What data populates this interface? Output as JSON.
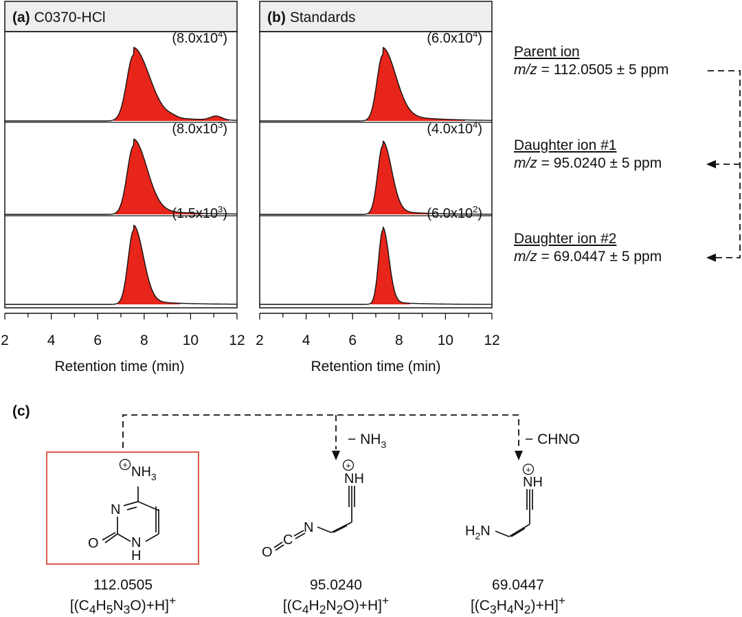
{
  "panel_a": {
    "tag": "(a)",
    "title": "C0370-HCl"
  },
  "panel_b": {
    "tag": "(b)",
    "title": "Standards"
  },
  "panel_c": {
    "tag": "(c)"
  },
  "ions": [
    {
      "name": "Parent ion",
      "mz_label": "m/z",
      "mz_value": " = 112.0505 ± 5 ppm"
    },
    {
      "name": "Daughter ion #1",
      "mz_label": "m/z",
      "mz_value": " = 95.0240 ± 5 ppm"
    },
    {
      "name": "Daughter ion #2",
      "mz_label": "m/z",
      "mz_value": " = 69.0447 ± 5 ppm"
    }
  ],
  "losses": [
    {
      "text": "− NH",
      "sub": "3"
    },
    {
      "text": "− CHNO",
      "sub": ""
    }
  ],
  "structures": [
    {
      "mass": "112.0505",
      "formula_parts": [
        "[(C",
        "4",
        "H",
        "5",
        "N",
        "3",
        "O)+H]",
        "+"
      ]
    },
    {
      "mass": "95.0240",
      "formula_parts": [
        "[(C",
        "4",
        "H",
        "2",
        "N",
        "2",
        "O)+H]",
        "+"
      ]
    },
    {
      "mass": "69.0447",
      "formula_parts": [
        "[(C",
        "3",
        "H",
        "4",
        "N",
        "2",
        ")+H]",
        "+"
      ]
    }
  ],
  "atom_labels": {
    "nh3": "NH",
    "nh3_sub": "3",
    "N": "N",
    "O": "O",
    "H": "H",
    "NH": "NH",
    "C": "C",
    "H2N": "H",
    "H2N_sub": "2",
    "H2N_tail": "N",
    "plus": "+"
  },
  "colors": {
    "peak": "#e8251a",
    "box": "#e05a4c",
    "line": "#111111"
  },
  "chart_data": [
    {
      "type": "line",
      "panel": "(a) C0370-HCl",
      "title": "C0370-HCl",
      "xlabel": "Retention time (min)",
      "xlim": [
        2,
        12
      ],
      "xticks": [
        2,
        4,
        6,
        8,
        10,
        12
      ],
      "series": [
        {
          "name": "Parent ion",
          "intensity_label": "(8.0x10",
          "intensity_exp": "4",
          "peak_rt": 7.55,
          "peak_width": 0.3,
          "tail": 0.95
        },
        {
          "name": "Daughter ion #1",
          "intensity_label": "(8.0x10",
          "intensity_exp": "3",
          "peak_rt": 7.55,
          "peak_width": 0.28,
          "tail": 0.8
        },
        {
          "name": "Daughter ion #2",
          "intensity_label": "(1.5x10",
          "intensity_exp": "3",
          "peak_rt": 7.55,
          "peak_width": 0.24,
          "tail": 0.55
        }
      ]
    },
    {
      "type": "line",
      "panel": "(b) Standards",
      "title": "Standards",
      "xlabel": "Retention time (min)",
      "xlim": [
        2,
        12
      ],
      "xticks": [
        2,
        4,
        6,
        8,
        10,
        12
      ],
      "series": [
        {
          "name": "Parent ion",
          "intensity_label": "(6.0x10",
          "intensity_exp": "4",
          "peak_rt": 7.3,
          "peak_width": 0.25,
          "tail": 0.95
        },
        {
          "name": "Daughter ion #1",
          "intensity_label": "(4.0x10",
          "intensity_exp": "4",
          "peak_rt": 7.3,
          "peak_width": 0.22,
          "tail": 0.55
        },
        {
          "name": "Daughter ion #2",
          "intensity_label": "(6.0x10",
          "intensity_exp": "2",
          "peak_rt": 7.3,
          "peak_width": 0.18,
          "tail": 0.35
        }
      ]
    }
  ]
}
